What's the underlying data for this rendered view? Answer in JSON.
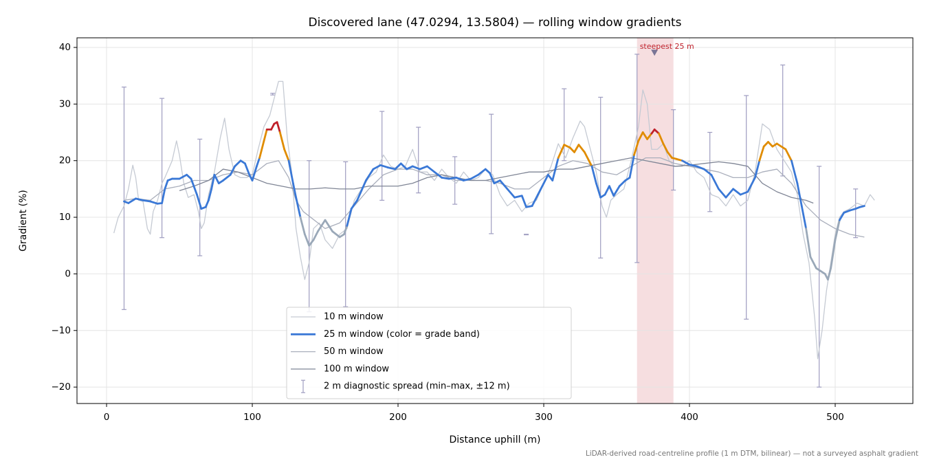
{
  "chart_data": {
    "type": "line",
    "title": "Discovered lane (47.0294, 13.5804) — rolling window gradients",
    "x_label": "Distance uphill (m)",
    "y_label": "Gradient (%)",
    "note": "LiDAR-derived road-centreline profile (1 m DTM, bilinear) — not a surveyed asphalt gradient",
    "xlim": [
      -20.3,
      553.3
    ],
    "ylim": [
      -22.9,
      41.7
    ],
    "xticks": [
      0,
      100,
      200,
      300,
      400,
      500
    ],
    "yticks": [
      {
        "value": -20,
        "label": "−20"
      },
      {
        "value": -10,
        "label": "−10"
      },
      0,
      10,
      20,
      30,
      40
    ],
    "grid": true,
    "legend": "lower center",
    "highlight": {
      "xlim": [
        364,
        389
      ],
      "color": "#f3d3d6"
    },
    "annotation": {
      "text": "steepest 25 m",
      "x": 376,
      "y": 39,
      "color": "#c0202a",
      "marker_color": "#7a7596"
    },
    "series": [
      {
        "name": "10 m window",
        "color": "#c5cad3",
        "width": 1.3,
        "x": [
          5,
          8,
          12,
          15,
          18,
          20,
          22,
          25,
          28,
          30,
          32,
          35,
          38,
          40,
          45,
          48,
          50,
          53,
          56,
          60,
          63,
          65,
          67,
          70,
          74,
          78,
          81,
          84,
          88,
          92,
          96,
          100,
          104,
          108,
          112,
          115,
          118,
          121,
          124,
          127,
          130,
          133,
          136,
          139,
          142,
          146,
          150,
          155,
          160,
          165,
          170,
          175,
          180,
          185,
          190,
          195,
          200,
          205,
          210,
          215,
          220,
          225,
          230,
          235,
          240,
          245,
          250,
          255,
          260,
          265,
          270,
          275,
          280,
          285,
          290,
          295,
          300,
          305,
          310,
          315,
          320,
          325,
          328,
          332,
          336,
          340,
          343,
          346,
          350,
          355,
          360,
          365,
          368,
          371,
          374,
          378,
          382,
          386,
          390,
          395,
          400,
          405,
          410,
          415,
          420,
          425,
          430,
          435,
          440,
          445,
          450,
          455,
          460,
          465,
          470,
          474,
          478,
          482,
          486,
          488,
          491,
          494,
          497,
          500,
          503,
          506,
          510,
          515,
          520,
          524,
          527
        ],
        "values": [
          7.2,
          10,
          12,
          15,
          19.2,
          17,
          13,
          12.8,
          8,
          7,
          11,
          13,
          16,
          17,
          20,
          23.5,
          21,
          16,
          13.5,
          14,
          11,
          8,
          9,
          14,
          18,
          24,
          27.5,
          22,
          17.5,
          17,
          17,
          17.5,
          22,
          26,
          28,
          31,
          34,
          34,
          24,
          18,
          8,
          3,
          -1,
          2,
          8,
          9,
          6,
          4.5,
          7,
          8,
          13,
          15,
          17,
          18,
          21,
          19,
          18.5,
          19,
          22,
          18,
          18,
          16.5,
          18.5,
          17,
          16,
          18,
          16.5,
          17,
          18.5,
          17.5,
          14,
          12,
          13,
          11,
          12.5,
          13,
          16,
          19,
          23,
          20.5,
          24,
          27,
          26,
          22,
          18,
          12,
          10,
          13,
          14,
          15,
          20,
          26,
          32.5,
          30,
          22,
          22,
          23,
          20,
          19,
          19,
          20,
          18,
          17,
          14,
          13.5,
          12,
          14,
          12,
          13,
          18,
          26.5,
          25.5,
          22,
          20,
          18,
          14,
          7,
          2,
          -8,
          -15,
          -10,
          -3,
          2,
          7,
          10,
          11,
          11.5,
          12.5,
          12,
          14,
          13
        ]
      },
      {
        "name": "25 m window (color = grade band)",
        "color": "#3a78d6",
        "width": 2.8,
        "band_colors": [
          {
            "below": 10,
            "color": "#9aa8b8"
          },
          {
            "below": 20,
            "color": "#3a78d6"
          },
          {
            "below": 25,
            "color": "#e08c00"
          },
          {
            "below": 100,
            "color": "#c0202a"
          }
        ],
        "x": [
          12,
          15,
          20,
          25,
          30,
          35,
          38,
          40,
          42,
          45,
          50,
          55,
          58,
          62,
          65,
          68,
          70,
          72,
          74,
          77,
          80,
          85,
          88,
          92,
          95,
          98,
          100,
          103,
          105,
          108,
          110,
          113,
          115,
          117,
          119,
          122,
          125,
          128,
          130,
          133,
          136,
          139,
          142,
          145,
          150,
          155,
          160,
          163,
          165,
          168,
          172,
          178,
          183,
          188,
          193,
          198,
          202,
          206,
          210,
          215,
          220,
          225,
          230,
          235,
          240,
          245,
          250,
          255,
          260,
          263,
          266,
          270,
          275,
          280,
          285,
          288,
          292,
          296,
          300,
          303,
          306,
          310,
          314,
          318,
          321,
          324,
          328,
          333,
          336,
          339,
          342,
          345,
          348,
          352,
          356,
          359,
          362,
          365,
          368,
          371,
          374,
          376,
          379,
          382,
          385,
          388,
          391,
          395,
          400,
          405,
          410,
          415,
          420,
          425,
          430,
          435,
          440,
          445,
          448,
          451,
          454,
          457,
          460,
          463,
          466,
          470,
          474,
          477,
          480,
          483,
          487,
          490,
          493,
          495,
          497,
          500,
          503,
          506,
          510,
          514,
          517,
          520
        ],
        "values": [
          12.8,
          12.5,
          13.3,
          13,
          12.8,
          12.4,
          12.5,
          15,
          16.5,
          16.8,
          16.8,
          17.5,
          16.8,
          14,
          11.5,
          11.8,
          13,
          15,
          17.5,
          16,
          16.5,
          17.5,
          19,
          20,
          19.5,
          17.5,
          16.5,
          19,
          20.5,
          23.5,
          25.5,
          25.5,
          26.5,
          26.8,
          25,
          22,
          20,
          16,
          13.5,
          10,
          7,
          5,
          6,
          7.5,
          9.5,
          7.5,
          6.5,
          7,
          8.5,
          11.5,
          13,
          16.5,
          18.5,
          19.2,
          18.8,
          18.5,
          19.5,
          18.5,
          19,
          18.5,
          19,
          18,
          17,
          16.8,
          17,
          16.5,
          16.8,
          17.5,
          18.5,
          17.8,
          16,
          16.5,
          15,
          13.5,
          13.8,
          11.8,
          12,
          14,
          16,
          17.5,
          16.5,
          20.5,
          22.8,
          22.3,
          21.5,
          22.8,
          21.5,
          19,
          16,
          13.5,
          14,
          15.5,
          13.8,
          15.5,
          16.5,
          17,
          21,
          23.5,
          25,
          23.8,
          24.8,
          25.5,
          24.8,
          23,
          21.5,
          20.5,
          20.3,
          20,
          19.3,
          19,
          18.5,
          17.5,
          15,
          13.5,
          15,
          14,
          14.5,
          17,
          20,
          22.5,
          23.3,
          22.5,
          23,
          22.5,
          22,
          20,
          16,
          12,
          8,
          3,
          1,
          0.5,
          0,
          -1,
          1,
          6,
          9.5,
          10.8,
          11.2,
          11.5,
          11.8,
          12
        ]
      },
      {
        "name": "50 m window",
        "color": "#a9aebb",
        "width": 1.3,
        "x": [
          12,
          20,
          30,
          40,
          50,
          60,
          70,
          80,
          90,
          100,
          110,
          118,
          125,
          130,
          135,
          140,
          145,
          150,
          160,
          170,
          180,
          190,
          200,
          210,
          220,
          230,
          240,
          250,
          260,
          270,
          280,
          290,
          300,
          310,
          320,
          330,
          340,
          350,
          360,
          370,
          380,
          390,
          400,
          410,
          420,
          430,
          440,
          450,
          460,
          470,
          480,
          490,
          500,
          510,
          520
        ],
        "values": [
          13,
          13.3,
          13,
          15,
          15.5,
          16.5,
          16.5,
          17.5,
          18,
          17.5,
          19.5,
          20,
          17,
          13,
          11,
          10,
          9,
          8,
          9,
          12,
          15,
          17.5,
          18.5,
          18.5,
          17.5,
          17.5,
          16.5,
          16.5,
          16.5,
          16,
          15,
          15,
          17,
          19,
          20,
          19.5,
          18,
          17.5,
          19,
          20.5,
          20.5,
          19.5,
          19,
          18.5,
          18,
          17,
          17,
          18,
          18.5,
          16,
          12,
          9.5,
          8,
          7,
          6.5
        ]
      },
      {
        "name": "100 m window",
        "color": "#7f8595",
        "width": 1.3,
        "x": [
          50,
          60,
          70,
          80,
          90,
          100,
          110,
          120,
          130,
          140,
          150,
          160,
          170,
          180,
          190,
          200,
          210,
          220,
          230,
          240,
          250,
          260,
          270,
          280,
          290,
          300,
          310,
          320,
          330,
          340,
          350,
          360,
          370,
          380,
          390,
          400,
          410,
          420,
          430,
          440,
          450,
          460,
          470,
          480,
          485
        ],
        "values": [
          14.7,
          15.5,
          16.5,
          18.5,
          18,
          17,
          16,
          15.5,
          15,
          15,
          15.2,
          15,
          15,
          15.5,
          15.5,
          15.5,
          16,
          17,
          17.5,
          17,
          16.5,
          16.5,
          17,
          17.5,
          18,
          18,
          18.5,
          18.5,
          19,
          19.5,
          20,
          20.5,
          20,
          19.5,
          19,
          19.2,
          19.5,
          19.8,
          19.5,
          19,
          16,
          14.5,
          13.5,
          13,
          12.5
        ]
      }
    ],
    "error_bars": {
      "name": "2 m diagnostic spread (min–max, ±12 m)",
      "color": "#9e9cc0",
      "x": [
        12,
        38,
        64,
        114,
        139,
        164,
        189,
        214,
        239,
        264,
        288,
        314,
        339,
        364,
        389,
        414,
        439,
        464,
        489,
        514
      ],
      "low": [
        -6.3,
        6.4,
        3.2,
        31.6,
        -6.7,
        -5.8,
        13,
        14.3,
        12.3,
        7.1,
        6.9,
        20,
        2.8,
        2,
        14.8,
        11,
        -8,
        17.3,
        -20,
        6.4
      ],
      "high": [
        33,
        31,
        23.8,
        31.9,
        20,
        19.8,
        28.7,
        25.9,
        20.7,
        28.2,
        7,
        32.7,
        31.2,
        38.8,
        29,
        25,
        31.5,
        36.9,
        19,
        15
      ]
    }
  }
}
